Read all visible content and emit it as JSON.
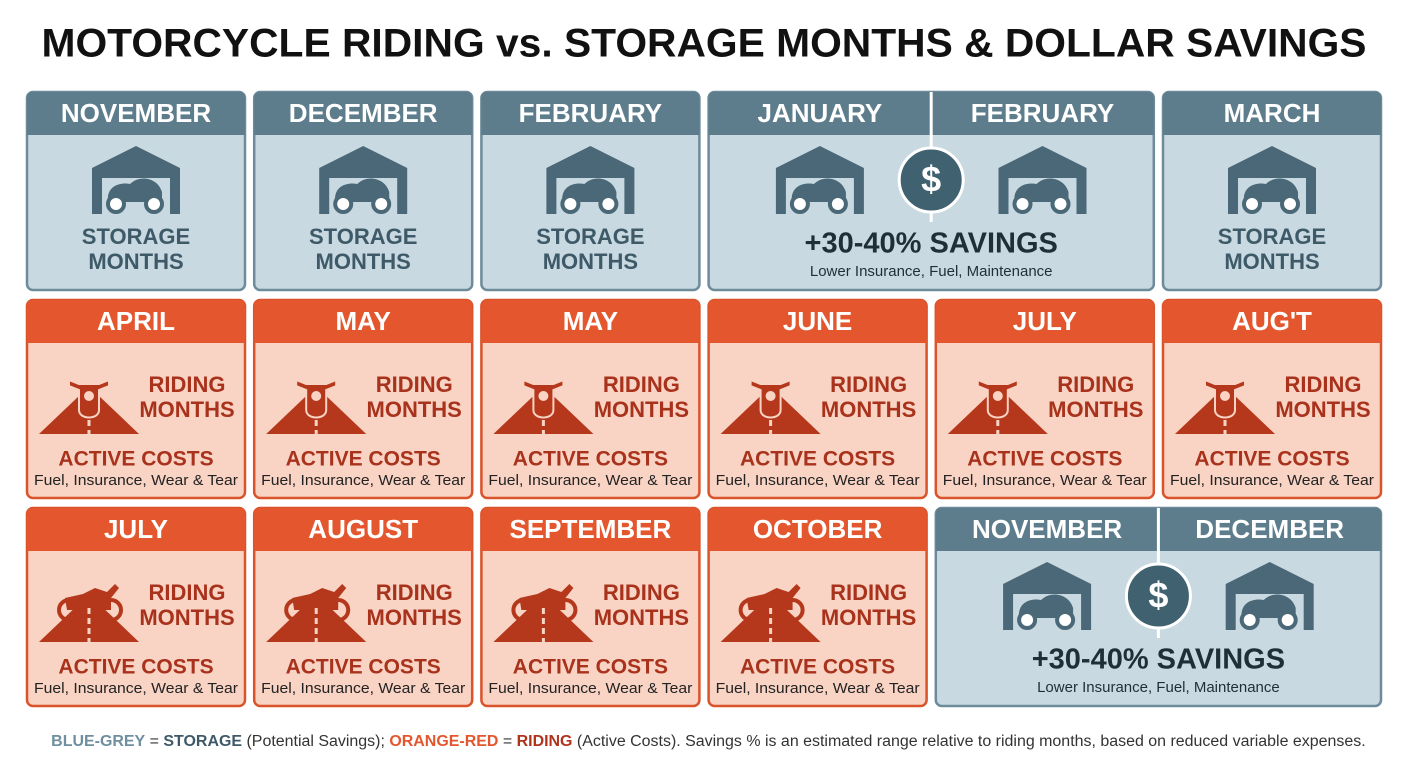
{
  "title": "MOTORCYCLE RIDING vs. STORAGE MONTHS & DOLLAR SAVINGS",
  "rows": [
    {
      "cards": [
        {
          "kind": "storage",
          "months": [
            "NOVEMBER"
          ],
          "lines": [
            "STORAGE",
            "MONTHS"
          ]
        },
        {
          "kind": "storage",
          "months": [
            "DECEMBER"
          ],
          "lines": [
            "STORAGE",
            "MONTHS"
          ]
        },
        {
          "kind": "storage",
          "months": [
            "FEBRUARY"
          ],
          "lines": [
            "STORAGE",
            "MONTHS"
          ]
        },
        {
          "kind": "storage",
          "months": [
            "JANUARY",
            "FEBRUARY"
          ],
          "symbol": "$",
          "savings": "+30-40% SAVINGS",
          "detail": "Lower Insurance, Fuel, Maintenance"
        },
        {
          "kind": "storage",
          "months": [
            "MARCH"
          ],
          "lines": [
            "STORAGE",
            "MONTHS"
          ]
        }
      ]
    },
    {
      "cards": [
        {
          "kind": "riding",
          "view": "front",
          "months": [
            "APRIL"
          ],
          "lines": [
            "RIDING",
            "MONTHS"
          ],
          "costs": "ACTIVE COSTS",
          "detail": "Fuel, Insurance, Wear & Tear"
        },
        {
          "kind": "riding",
          "view": "front",
          "months": [
            "MAY"
          ],
          "lines": [
            "RIDING",
            "MONTHS"
          ],
          "costs": "ACTIVE COSTS",
          "detail": "Fuel, Insurance, Wear & Tear"
        },
        {
          "kind": "riding",
          "view": "front",
          "months": [
            "MAY"
          ],
          "lines": [
            "RIDING",
            "MONTHS"
          ],
          "costs": "ACTIVE COSTS",
          "detail": "Fuel, Insurance, Wear & Tear"
        },
        {
          "kind": "riding",
          "view": "front",
          "months": [
            "JUNE"
          ],
          "lines": [
            "RIDING",
            "MONTHS"
          ],
          "costs": "ACTIVE COSTS",
          "detail": "Fuel, Insurance, Wear & Tear"
        },
        {
          "kind": "riding",
          "view": "front",
          "months": [
            "JULY"
          ],
          "lines": [
            "RIDING",
            "MONTHS"
          ],
          "costs": "ACTIVE COSTS",
          "detail": "Fuel, Insurance, Wear & Tear"
        },
        {
          "kind": "riding",
          "view": "front",
          "months": [
            "AUG'T"
          ],
          "lines": [
            "RIDING",
            "MONTHS"
          ],
          "costs": "ACTIVE COSTS",
          "detail": "Fuel, Insurance, Wear & Tear"
        }
      ]
    },
    {
      "cards": [
        {
          "kind": "riding",
          "view": "side",
          "months": [
            "JULY"
          ],
          "lines": [
            "RIDING",
            "MONTHS"
          ],
          "costs": "ACTIVE COSTS",
          "detail": "Fuel, Insurance, Wear & Tear"
        },
        {
          "kind": "riding",
          "view": "side",
          "months": [
            "AUGUST"
          ],
          "lines": [
            "RIDING",
            "MONTHS"
          ],
          "costs": "ACTIVE COSTS",
          "detail": "Fuel, Insurance, Wear & Tear"
        },
        {
          "kind": "riding",
          "view": "side",
          "months": [
            "SEPTEMBER"
          ],
          "lines": [
            "RIDING",
            "MONTHS"
          ],
          "costs": "ACTIVE COSTS",
          "detail": "Fuel, Insurance, Wear & Tear"
        },
        {
          "kind": "riding",
          "view": "side",
          "months": [
            "OCTOBER"
          ],
          "lines": [
            "RIDING",
            "MONTHS"
          ],
          "costs": "ACTIVE COSTS",
          "detail": "Fuel, Insurance, Wear & Tear"
        },
        {
          "kind": "storage",
          "months": [
            "NOVEMBER",
            "DECEMBER"
          ],
          "symbol": "$",
          "savings": "+30-40% SAVINGS",
          "detail": "Lower Insurance, Fuel, Maintenance"
        }
      ]
    }
  ],
  "footer": [
    "BLUE-GREY",
    " = ",
    "STORAGE",
    " (Potential Savings); ",
    "ORANGE-RED",
    " = ",
    "RIDING",
    " (Active Costs). Savings % is an estimated range relative to riding months, based on reduced variable expenses."
  ]
}
